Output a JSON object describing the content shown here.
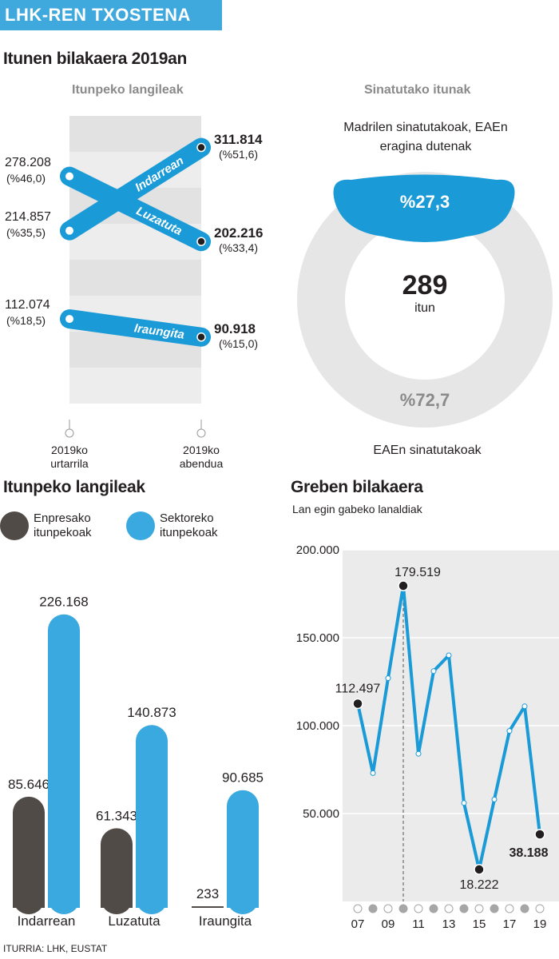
{
  "banner": "LHK-REN TXOSTENA",
  "section_top": "Itunen bilakaera 2019an",
  "section_workers": "Itunpeko langileak",
  "section_strikes": "Greben bilakaera",
  "source": "ITURRIA: LHK, EUSTAT",
  "chart_data": [
    {
      "type": "slope",
      "title": "Itunpeko langileak",
      "periods": [
        "2019ko urtarrila",
        "2019ko abendua"
      ],
      "series": [
        {
          "name": "Indarrean",
          "values": [
            214857,
            311814
          ],
          "start_label": "214.857",
          "start_pct": "(%35,5)",
          "end_label": "311.814",
          "end_pct": "(%51,6)"
        },
        {
          "name": "Luzatuta",
          "values": [
            278208,
            202216
          ],
          "start_label": "278.208",
          "start_pct": "(%46,0)",
          "end_label": "202.216",
          "end_pct": "(%33,4)"
        },
        {
          "name": "Iraungita",
          "values": [
            112074,
            90918
          ],
          "start_label": "112.074",
          "start_pct": "(%18,5)",
          "end_label": "90.918",
          "end_pct": "(%15,0)"
        }
      ]
    },
    {
      "type": "pie",
      "title": "Sinatutako itunak",
      "center_value": "289",
      "center_unit": "itun",
      "slices": [
        {
          "label": "Madrilen sinatutakoak, EAEn eragina dutenak",
          "value": 27.3,
          "value_label": "%27,3",
          "color": "#1a9ad6"
        },
        {
          "label": "EAEn sinatutakoak",
          "value": 72.7,
          "value_label": "%72,7",
          "color": "#e6e6e6"
        }
      ]
    },
    {
      "type": "bar",
      "title": "Itunpeko langileak",
      "categories": [
        "Indarrean",
        "Luzatuta",
        "Iraungita"
      ],
      "series": [
        {
          "name": "Enpresako itunpekoak",
          "values": [
            85646,
            61343,
            233
          ],
          "labels": [
            "85.646",
            "61.343",
            "233"
          ],
          "color": "#514b47"
        },
        {
          "name": "Sektoreko itunpekoak",
          "values": [
            226168,
            140873,
            90685
          ],
          "labels": [
            "226.168",
            "140.873",
            "90.685"
          ],
          "color": "#3aa9e0"
        }
      ]
    },
    {
      "type": "line",
      "title": "Greben bilakaera",
      "subtitle": "Lan egin gabeko lanaldiak",
      "x": [
        2007,
        2008,
        2009,
        2010,
        2011,
        2012,
        2013,
        2014,
        2015,
        2016,
        2017,
        2018,
        2019
      ],
      "x_tick_labels": [
        "07",
        "",
        "09",
        "",
        "11",
        "",
        "13",
        "",
        "15",
        "",
        "17",
        "",
        "19"
      ],
      "values": [
        112497,
        73000,
        127000,
        179519,
        84000,
        131000,
        140000,
        56000,
        18222,
        58000,
        97000,
        111000,
        38188
      ],
      "annotations": [
        {
          "x": 2007,
          "label": "112.497"
        },
        {
          "x": 2010,
          "label": "179.519"
        },
        {
          "x": 2015,
          "label": "18.222"
        },
        {
          "x": 2019,
          "label": "38.188"
        }
      ],
      "ylim": [
        0,
        200000
      ],
      "y_ticks": [
        50000,
        100000,
        150000,
        200000
      ],
      "y_tick_labels": [
        "50.000",
        "100.000",
        "150.000",
        "200.000"
      ],
      "grid": true
    }
  ]
}
